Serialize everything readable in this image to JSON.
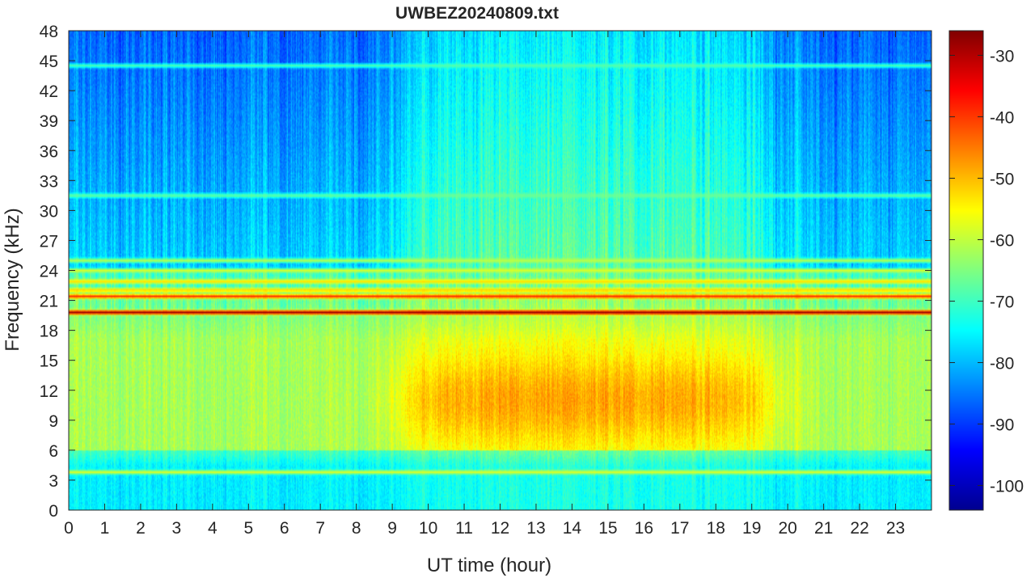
{
  "chart_data": {
    "type": "heatmap",
    "title": "UWBEZ20240809.txt",
    "xlabel": "UT time (hour)",
    "ylabel": "Frequency (kHz)",
    "xlim": [
      0,
      24
    ],
    "ylim": [
      0,
      48
    ],
    "x_ticks": [
      0,
      1,
      2,
      3,
      4,
      5,
      6,
      7,
      8,
      9,
      10,
      11,
      12,
      13,
      14,
      15,
      16,
      17,
      18,
      19,
      20,
      21,
      22,
      23
    ],
    "y_ticks": [
      0,
      3,
      6,
      9,
      12,
      15,
      18,
      21,
      24,
      27,
      30,
      33,
      36,
      39,
      42,
      45,
      48
    ],
    "colorbar": {
      "colormap": "jet",
      "clim": [
        -104,
        -26
      ],
      "ticks": [
        -100,
        -90,
        -80,
        -70,
        -60,
        -50,
        -40,
        -30
      ]
    },
    "value_estimates_db": {
      "background_high_freq_night": -88,
      "background_high_freq_day": -72,
      "background_mid_freq_night": -62,
      "background_mid_freq_day": -54,
      "background_low_freq": -76,
      "transmitter_19_8kHz": -28,
      "transmitter_21_4kHz": -38
    },
    "narrowband_lines_khz": [
      {
        "freq": 19.8,
        "level": -28
      },
      {
        "freq": 21.4,
        "level": -38
      },
      {
        "freq": 22.0,
        "level": -50
      },
      {
        "freq": 22.9,
        "level": -52
      },
      {
        "freq": 24.0,
        "level": -58
      },
      {
        "freq": 25.0,
        "level": -60
      },
      {
        "freq": 3.8,
        "level": -58
      },
      {
        "freq": 31.5,
        "level": -66
      },
      {
        "freq": 44.5,
        "level": -68
      }
    ]
  }
}
